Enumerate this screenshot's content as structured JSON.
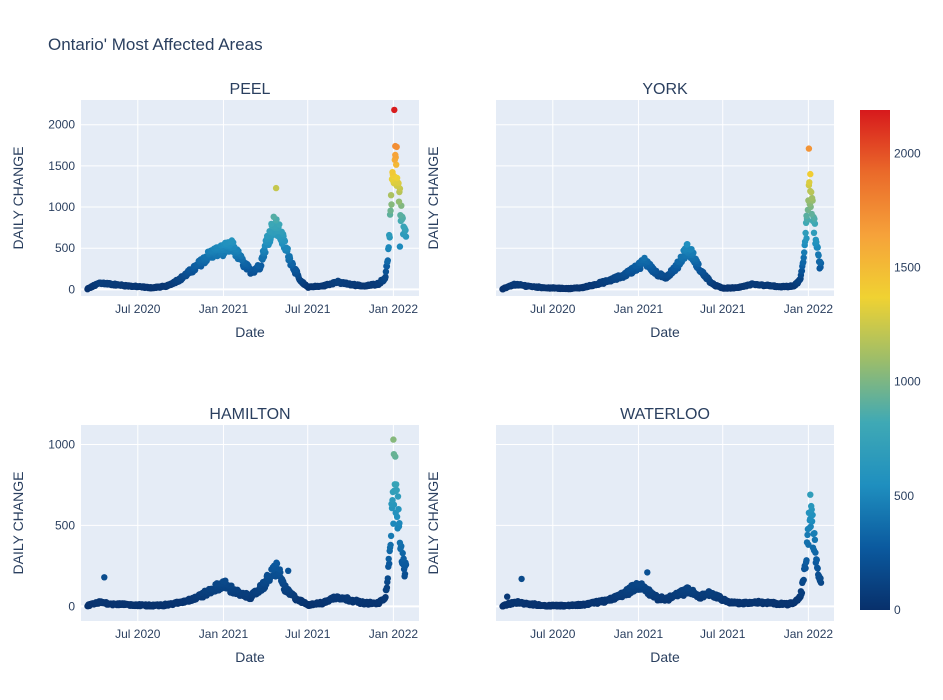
{
  "chart_data": {
    "type": "scatter",
    "title": "Ontario' Most Affected Areas",
    "xlabel": "Date",
    "ylabel": "DAILY CHANGE",
    "x_range": [
      "2020-03-01",
      "2022-02-25"
    ],
    "x_ticks": [
      {
        "date": "2020-07-01",
        "label": "Jul 2020"
      },
      {
        "date": "2021-01-01",
        "label": "Jan 2021"
      },
      {
        "date": "2021-07-01",
        "label": "Jul 2021"
      },
      {
        "date": "2022-01-01",
        "label": "Jan 2022"
      }
    ],
    "colorscale": [
      "#08306b",
      "#0b5a9f",
      "#1f8fbf",
      "#3fa9b5",
      "#9cbd6a",
      "#f0d232",
      "#f6a23a",
      "#ea6a2a",
      "#d7191c"
    ],
    "color_range": [
      0,
      2190
    ],
    "colorbar_ticks": [
      0,
      500,
      1000,
      1500,
      2000
    ],
    "panels": [
      {
        "name": "PEEL",
        "ylim": [
          -80,
          2300
        ],
        "y_ticks": [
          0,
          500,
          1000,
          1500,
          2000
        ],
        "show_y_labels": true,
        "anchors": [
          [
            "2020-03-15",
            5
          ],
          [
            "2020-04-10",
            80
          ],
          [
            "2020-05-10",
            60
          ],
          [
            "2020-06-15",
            40
          ],
          [
            "2020-08-01",
            20
          ],
          [
            "2020-09-01",
            40
          ],
          [
            "2020-10-01",
            130
          ],
          [
            "2020-11-01",
            260
          ],
          [
            "2020-12-01",
            420
          ],
          [
            "2021-01-01",
            480
          ],
          [
            "2021-01-20",
            520
          ],
          [
            "2021-02-15",
            300
          ],
          [
            "2021-03-01",
            220
          ],
          [
            "2021-03-20",
            280
          ],
          [
            "2021-04-05",
            600
          ],
          [
            "2021-04-20",
            800
          ],
          [
            "2021-05-05",
            650
          ],
          [
            "2021-05-25",
            350
          ],
          [
            "2021-06-15",
            100
          ],
          [
            "2021-07-01",
            30
          ],
          [
            "2021-08-01",
            40
          ],
          [
            "2021-09-01",
            90
          ],
          [
            "2021-10-01",
            60
          ],
          [
            "2021-11-01",
            40
          ],
          [
            "2021-12-01",
            70
          ],
          [
            "2021-12-15",
            150
          ],
          [
            "2021-12-22",
            500
          ],
          [
            "2021-12-28",
            1100
          ],
          [
            "2022-01-04",
            1600
          ],
          [
            "2022-01-10",
            1350
          ],
          [
            "2022-01-18",
            900
          ],
          [
            "2022-01-25",
            650
          ]
        ],
        "scatter": 0.15,
        "extra_points": [
          [
            "2022-01-03",
            2180
          ],
          [
            "2022-01-05",
            1740
          ],
          [
            "2022-01-08",
            1730
          ],
          [
            "2021-04-24",
            1230
          ],
          [
            "2022-01-15",
            520
          ]
        ]
      },
      {
        "name": "YORK",
        "ylim": [
          -80,
          2300
        ],
        "y_ticks": [
          0,
          500,
          1000,
          1500,
          2000
        ],
        "show_y_labels": false,
        "anchors": [
          [
            "2020-03-15",
            5
          ],
          [
            "2020-04-10",
            60
          ],
          [
            "2020-05-10",
            40
          ],
          [
            "2020-06-15",
            20
          ],
          [
            "2020-08-01",
            10
          ],
          [
            "2020-09-01",
            20
          ],
          [
            "2020-10-01",
            60
          ],
          [
            "2020-11-01",
            110
          ],
          [
            "2020-12-01",
            170
          ],
          [
            "2021-01-01",
            280
          ],
          [
            "2021-01-15",
            350
          ],
          [
            "2021-02-10",
            180
          ],
          [
            "2021-03-01",
            150
          ],
          [
            "2021-03-25",
            280
          ],
          [
            "2021-04-15",
            500
          ],
          [
            "2021-04-25",
            430
          ],
          [
            "2021-05-15",
            220
          ],
          [
            "2021-06-10",
            60
          ],
          [
            "2021-07-01",
            15
          ],
          [
            "2021-08-01",
            20
          ],
          [
            "2021-09-01",
            60
          ],
          [
            "2021-10-01",
            50
          ],
          [
            "2021-11-01",
            30
          ],
          [
            "2021-12-01",
            40
          ],
          [
            "2021-12-15",
            120
          ],
          [
            "2021-12-22",
            380
          ],
          [
            "2021-12-28",
            900
          ],
          [
            "2022-01-04",
            1200
          ],
          [
            "2022-01-10",
            950
          ],
          [
            "2022-01-18",
            550
          ],
          [
            "2022-01-25",
            300
          ]
        ],
        "scatter": 0.15,
        "extra_points": [
          [
            "2022-01-02",
            1710
          ],
          [
            "2022-01-05",
            1400
          ],
          [
            "2021-12-28",
            620
          ]
        ]
      },
      {
        "name": "HAMILTON",
        "ylim": [
          -90,
          1120
        ],
        "y_ticks": [
          0,
          500,
          1000
        ],
        "show_y_labels": true,
        "anchors": [
          [
            "2020-03-15",
            5
          ],
          [
            "2020-04-10",
            25
          ],
          [
            "2020-05-10",
            15
          ],
          [
            "2020-06-15",
            10
          ],
          [
            "2020-08-01",
            5
          ],
          [
            "2020-09-01",
            10
          ],
          [
            "2020-10-01",
            25
          ],
          [
            "2020-11-01",
            50
          ],
          [
            "2020-12-01",
            90
          ],
          [
            "2021-01-01",
            140
          ],
          [
            "2021-01-15",
            110
          ],
          [
            "2021-02-10",
            70
          ],
          [
            "2021-03-01",
            60
          ],
          [
            "2021-03-25",
            120
          ],
          [
            "2021-04-15",
            200
          ],
          [
            "2021-04-25",
            240
          ],
          [
            "2021-05-15",
            100
          ],
          [
            "2021-06-10",
            40
          ],
          [
            "2021-07-01",
            10
          ],
          [
            "2021-08-01",
            20
          ],
          [
            "2021-09-01",
            60
          ],
          [
            "2021-10-01",
            40
          ],
          [
            "2021-11-01",
            20
          ],
          [
            "2021-12-01",
            20
          ],
          [
            "2021-12-15",
            60
          ],
          [
            "2021-12-22",
            250
          ],
          [
            "2021-12-28",
            550
          ],
          [
            "2022-01-04",
            700
          ],
          [
            "2022-01-10",
            600
          ],
          [
            "2022-01-18",
            330
          ],
          [
            "2022-01-25",
            230
          ]
        ],
        "scatter": 0.2,
        "extra_points": [
          [
            "2022-01-01",
            1030
          ],
          [
            "2022-01-02",
            940
          ],
          [
            "2022-01-05",
            925
          ],
          [
            "2021-05-20",
            220
          ],
          [
            "2020-04-20",
            180
          ],
          [
            "2022-01-26",
            200
          ]
        ]
      },
      {
        "name": "WATERLOO",
        "ylim": [
          -90,
          1120
        ],
        "y_ticks": [
          0,
          500,
          1000
        ],
        "show_y_labels": false,
        "anchors": [
          [
            "2020-03-15",
            5
          ],
          [
            "2020-04-10",
            25
          ],
          [
            "2020-05-10",
            15
          ],
          [
            "2020-06-15",
            5
          ],
          [
            "2020-08-01",
            5
          ],
          [
            "2020-09-01",
            10
          ],
          [
            "2020-10-01",
            25
          ],
          [
            "2020-11-01",
            40
          ],
          [
            "2020-12-01",
            80
          ],
          [
            "2021-01-01",
            130
          ],
          [
            "2021-01-15",
            110
          ],
          [
            "2021-02-10",
            50
          ],
          [
            "2021-03-01",
            45
          ],
          [
            "2021-04-01",
            80
          ],
          [
            "2021-04-20",
            100
          ],
          [
            "2021-05-10",
            60
          ],
          [
            "2021-06-01",
            80
          ],
          [
            "2021-06-20",
            60
          ],
          [
            "2021-07-15",
            25
          ],
          [
            "2021-08-15",
            20
          ],
          [
            "2021-09-15",
            25
          ],
          [
            "2021-10-15",
            20
          ],
          [
            "2021-11-15",
            15
          ],
          [
            "2021-12-01",
            20
          ],
          [
            "2021-12-15",
            60
          ],
          [
            "2021-12-22",
            170
          ],
          [
            "2021-12-28",
            330
          ],
          [
            "2022-01-04",
            560
          ],
          [
            "2022-01-10",
            480
          ],
          [
            "2022-01-18",
            290
          ],
          [
            "2022-01-25",
            170
          ]
        ],
        "scatter": 0.2,
        "extra_points": [
          [
            "2020-04-25",
            170
          ],
          [
            "2022-01-05",
            690
          ],
          [
            "2021-01-20",
            210
          ],
          [
            "2020-03-25",
            60
          ]
        ]
      }
    ]
  }
}
